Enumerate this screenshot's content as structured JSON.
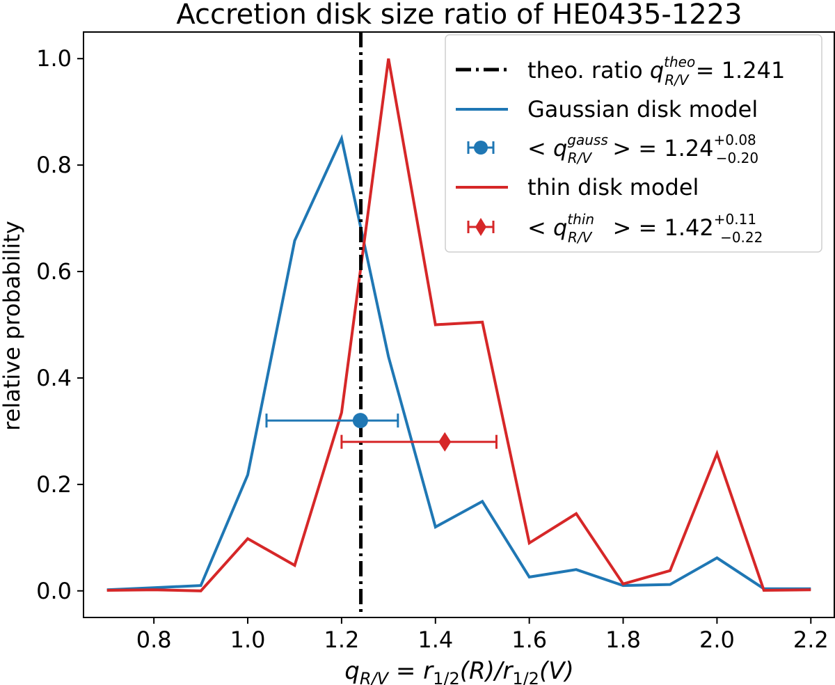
{
  "chart_data": {
    "type": "line",
    "title": "Accretion disk size ratio of HE0435-1223",
    "xlabel": {
      "q": "q",
      "sub_rv": "R/V",
      "eq": " = r",
      "sub_half": "1/2",
      "mid": "(R)/r",
      "end": "(V)"
    },
    "ylabel": "relative probability",
    "xlim": [
      0.65,
      2.25
    ],
    "ylim": [
      -0.05,
      1.05
    ],
    "xticks": [
      0.8,
      1.0,
      1.2,
      1.4,
      1.6,
      1.8,
      2.0,
      2.2
    ],
    "xtick_labels": [
      "0.8",
      "1.0",
      "1.2",
      "1.4",
      "1.6",
      "1.8",
      "2.0",
      "2.2"
    ],
    "yticks": [
      0.0,
      0.2,
      0.4,
      0.6,
      0.8,
      1.0
    ],
    "ytick_labels": [
      "0.0",
      "0.2",
      "0.4",
      "0.6",
      "0.8",
      "1.0"
    ],
    "x": [
      0.7,
      0.8,
      0.9,
      1.0,
      1.1,
      1.2,
      1.3,
      1.4,
      1.5,
      1.6,
      1.7,
      1.8,
      1.9,
      2.0,
      2.1,
      2.2
    ],
    "series": [
      {
        "name": "Gaussian disk model",
        "color": "#1f77b4",
        "values": [
          0.002,
          0.006,
          0.01,
          0.218,
          0.658,
          0.85,
          0.44,
          0.12,
          0.168,
          0.026,
          0.04,
          0.01,
          0.012,
          0.062,
          0.004,
          0.004
        ]
      },
      {
        "name": "thin disk model",
        "color": "#d62728",
        "values": [
          0.001,
          0.002,
          0.0,
          0.098,
          0.048,
          0.335,
          1.0,
          0.5,
          0.505,
          0.09,
          0.145,
          0.013,
          0.038,
          0.258,
          0.001,
          0.002
        ]
      }
    ],
    "vline": {
      "x": 1.241,
      "color": "#000000",
      "style": "dash-dot"
    },
    "errorbars": [
      {
        "name": "gauss mean",
        "x": 1.24,
        "y": 0.32,
        "xerr_minus": 0.2,
        "xerr_plus": 0.08,
        "marker": "circle",
        "color": "#1f77b4"
      },
      {
        "name": "thin mean",
        "x": 1.42,
        "y": 0.28,
        "xerr_minus": 0.22,
        "xerr_plus": 0.11,
        "marker": "diamond",
        "color": "#d62728"
      }
    ],
    "legend": {
      "position": "top-right",
      "entries": [
        {
          "pre": "theo. ratio ",
          "sym": "q",
          "sup": "theo",
          "sub": "R/V",
          "post": " = 1.241"
        },
        {
          "text": "Gaussian disk model"
        },
        {
          "pre": "< ",
          "sym": "q",
          "sup": "gauss",
          "sub": "R/V",
          "post": " > = 1.24",
          "up": "+0.08",
          "down": "−0.20"
        },
        {
          "text": "thin disk model"
        },
        {
          "pre": "< ",
          "sym": "q",
          "sup": "thin",
          "sub": "R/V",
          "post": " > = 1.42",
          "up": "+0.11",
          "down": "−0.22"
        }
      ]
    }
  }
}
